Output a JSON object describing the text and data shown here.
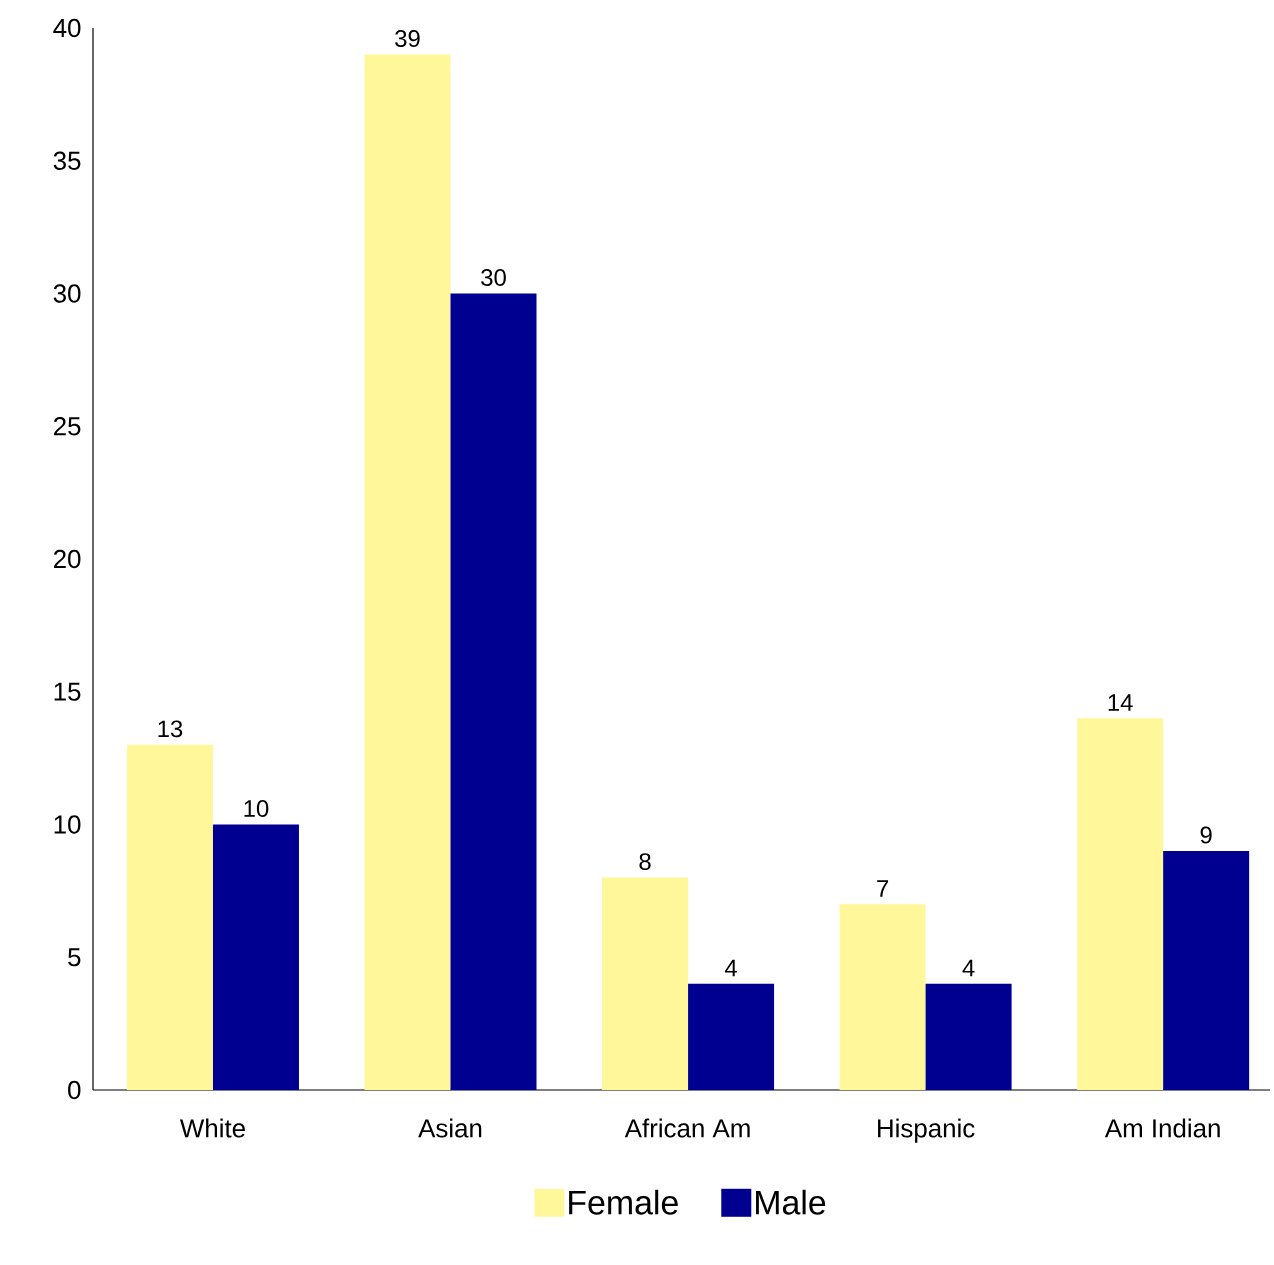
{
  "chart_data": {
    "type": "bar",
    "categories": [
      "White",
      "Asian",
      "African Am",
      "Hispanic",
      "Am Indian"
    ],
    "series": [
      {
        "name": "Female",
        "color": "#fff79a",
        "values": [
          13,
          39,
          8,
          7,
          14
        ]
      },
      {
        "name": "Male",
        "color": "#000090",
        "values": [
          10,
          30,
          4,
          4,
          9
        ]
      }
    ],
    "ylim": [
      0,
      40
    ],
    "yticks": [
      0,
      5,
      10,
      15,
      20,
      25,
      30,
      35,
      40
    ],
    "data_labels": true,
    "legend": "bottom",
    "grid": false
  }
}
